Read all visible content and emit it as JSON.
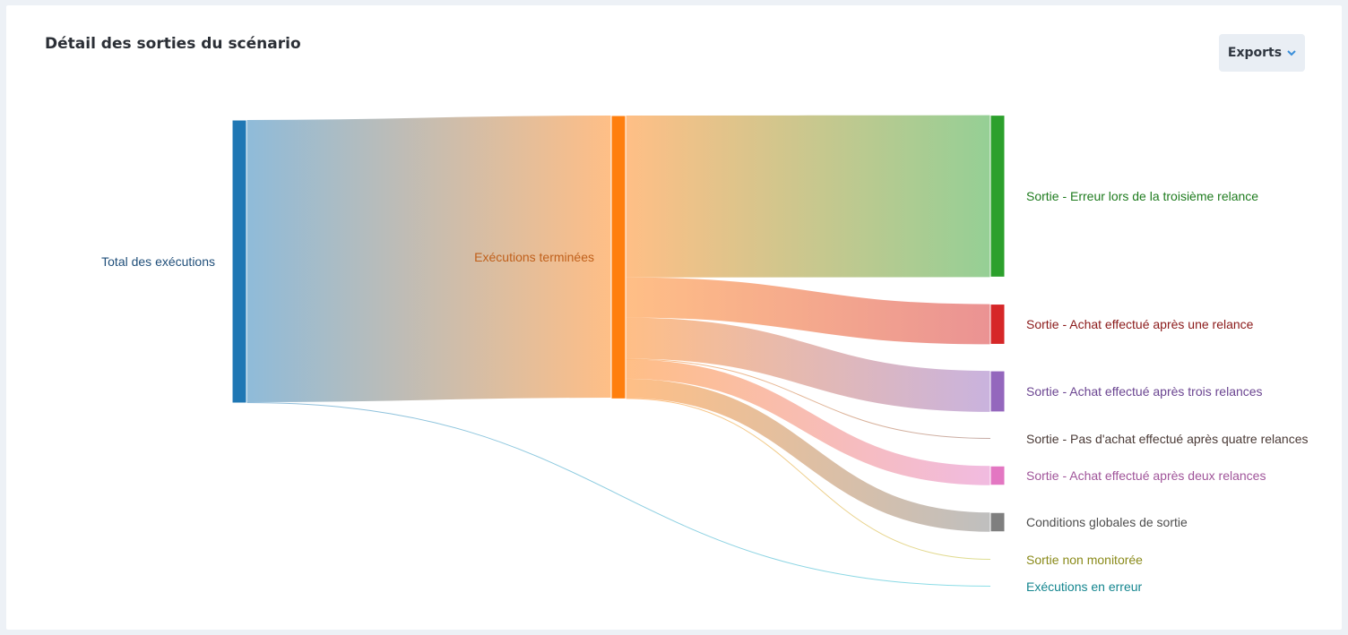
{
  "card": {
    "title": "Détail des sorties du scénario",
    "exports_label": "Exports",
    "exports_icon": "chevron-down-icon"
  },
  "chart_data": {
    "type": "sankey",
    "nodes": [
      {
        "id": "total",
        "label": "Total des exécutions",
        "color": "#1f77b4",
        "label_color": "#1f4e79"
      },
      {
        "id": "terminees",
        "label": "Exécutions terminées",
        "color": "#ff7f0e",
        "label_color": "#c0601b"
      },
      {
        "id": "erreur3",
        "label": "Sortie - Erreur lors de la troisième relance",
        "color": "#2ca02c",
        "label_color": "#1e7b1e"
      },
      {
        "id": "achat1",
        "label": "Sortie - Achat effectué après une relance",
        "color": "#d62728",
        "label_color": "#8b1a1a"
      },
      {
        "id": "achat3",
        "label": "Sortie - Achat effectué après trois relances",
        "color": "#9467bd",
        "label_color": "#6b4591"
      },
      {
        "id": "pasachat4",
        "label": "Sortie - Pas d'achat effectué après quatre relances",
        "color": "#8c564b",
        "label_color": "#4a3a36"
      },
      {
        "id": "achat2",
        "label": "Sortie - Achat effectué après deux relances",
        "color": "#e377c2",
        "label_color": "#a0559a"
      },
      {
        "id": "globales",
        "label": "Conditions globales de sortie",
        "color": "#7f7f7f",
        "label_color": "#4d4d4d"
      },
      {
        "id": "nonmon",
        "label": "Sortie non monitorée",
        "color": "#bcbd22",
        "label_color": "#8a8a1a"
      },
      {
        "id": "enerreur",
        "label": "Exécutions en erreur",
        "color": "#17becf",
        "label_color": "#15868f"
      }
    ],
    "links": [
      {
        "source": "total",
        "target": "terminees",
        "value": 99.7
      },
      {
        "source": "total",
        "target": "enerreur",
        "value": 0.3
      },
      {
        "source": "terminees",
        "target": "erreur3",
        "value": 57.2
      },
      {
        "source": "terminees",
        "target": "achat1",
        "value": 14.2
      },
      {
        "source": "terminees",
        "target": "achat3",
        "value": 14.5
      },
      {
        "source": "terminees",
        "target": "pasachat4",
        "value": 0.3
      },
      {
        "source": "terminees",
        "target": "achat2",
        "value": 6.8
      },
      {
        "source": "terminees",
        "target": "globales",
        "value": 6.8
      },
      {
        "source": "terminees",
        "target": "nonmon",
        "value": 0.3
      }
    ]
  }
}
